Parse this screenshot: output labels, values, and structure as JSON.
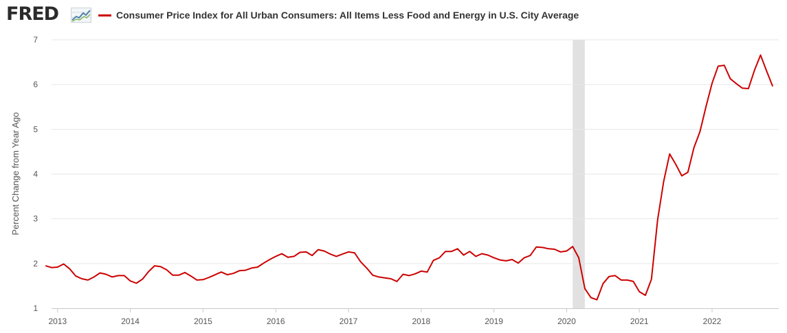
{
  "header": {
    "logo_text": "FRED",
    "logo_icon": "line-chart-icon"
  },
  "chart_data": {
    "type": "line",
    "title": "",
    "xlabel": "",
    "ylabel": "Percent Change from Year Ago",
    "series": [
      {
        "name": "Consumer Price Index for All Urban Consumers: All Items Less Food and Energy in U.S. City Average",
        "color": "#cc0000",
        "x": [
          "2012-11",
          "2012-12",
          "2013-01",
          "2013-02",
          "2013-03",
          "2013-04",
          "2013-05",
          "2013-06",
          "2013-07",
          "2013-08",
          "2013-09",
          "2013-10",
          "2013-11",
          "2013-12",
          "2014-01",
          "2014-02",
          "2014-03",
          "2014-04",
          "2014-05",
          "2014-06",
          "2014-07",
          "2014-08",
          "2014-09",
          "2014-10",
          "2014-11",
          "2014-12",
          "2015-01",
          "2015-02",
          "2015-03",
          "2015-04",
          "2015-05",
          "2015-06",
          "2015-07",
          "2015-08",
          "2015-09",
          "2015-10",
          "2015-11",
          "2015-12",
          "2016-01",
          "2016-02",
          "2016-03",
          "2016-04",
          "2016-05",
          "2016-06",
          "2016-07",
          "2016-08",
          "2016-09",
          "2016-10",
          "2016-11",
          "2016-12",
          "2017-01",
          "2017-02",
          "2017-03",
          "2017-04",
          "2017-05",
          "2017-06",
          "2017-07",
          "2017-08",
          "2017-09",
          "2017-10",
          "2017-11",
          "2017-12",
          "2018-01",
          "2018-02",
          "2018-03",
          "2018-04",
          "2018-05",
          "2018-06",
          "2018-07",
          "2018-08",
          "2018-09",
          "2018-10",
          "2018-11",
          "2018-12",
          "2019-01",
          "2019-02",
          "2019-03",
          "2019-04",
          "2019-05",
          "2019-06",
          "2019-07",
          "2019-08",
          "2019-09",
          "2019-10",
          "2019-11",
          "2019-12",
          "2020-01",
          "2020-02",
          "2020-03",
          "2020-04",
          "2020-05",
          "2020-06",
          "2020-07",
          "2020-08",
          "2020-09",
          "2020-10",
          "2020-11",
          "2020-12",
          "2021-01",
          "2021-02",
          "2021-03",
          "2021-04",
          "2021-05",
          "2021-06",
          "2021-07",
          "2021-08",
          "2021-09",
          "2021-10",
          "2021-11",
          "2021-12",
          "2022-01",
          "2022-02",
          "2022-03",
          "2022-04",
          "2022-05",
          "2022-06",
          "2022-07",
          "2022-08",
          "2022-09",
          "2022-10",
          "2022-11"
        ],
        "values": [
          1.95,
          1.91,
          1.92,
          1.99,
          1.88,
          1.72,
          1.66,
          1.63,
          1.7,
          1.79,
          1.76,
          1.7,
          1.73,
          1.73,
          1.61,
          1.56,
          1.65,
          1.82,
          1.95,
          1.93,
          1.86,
          1.74,
          1.74,
          1.8,
          1.72,
          1.63,
          1.64,
          1.69,
          1.75,
          1.81,
          1.75,
          1.78,
          1.84,
          1.85,
          1.9,
          1.92,
          2.01,
          2.09,
          2.16,
          2.22,
          2.14,
          2.16,
          2.25,
          2.26,
          2.18,
          2.31,
          2.28,
          2.21,
          2.16,
          2.21,
          2.26,
          2.24,
          2.04,
          1.9,
          1.74,
          1.7,
          1.68,
          1.66,
          1.6,
          1.76,
          1.73,
          1.77,
          1.83,
          1.81,
          2.07,
          2.13,
          2.27,
          2.27,
          2.33,
          2.19,
          2.27,
          2.16,
          2.22,
          2.19,
          2.13,
          2.08,
          2.06,
          2.09,
          2.01,
          2.13,
          2.18,
          2.37,
          2.36,
          2.33,
          2.32,
          2.26,
          2.28,
          2.38,
          2.13,
          1.44,
          1.24,
          1.19,
          1.55,
          1.71,
          1.73,
          1.63,
          1.63,
          1.6,
          1.37,
          1.29,
          1.65,
          2.97,
          3.83,
          4.45,
          4.22,
          3.96,
          4.04,
          4.59,
          4.95,
          5.51,
          6.03,
          6.41,
          6.43,
          6.13,
          6.02,
          5.92,
          5.91,
          6.32,
          6.66,
          6.3,
          5.96
        ]
      }
    ],
    "ylim": [
      1,
      7
    ],
    "yticks": [
      "1",
      "2",
      "3",
      "4",
      "5",
      "6",
      "7"
    ],
    "xticks": [
      "2013",
      "2014",
      "2015",
      "2016",
      "2017",
      "2018",
      "2019",
      "2020",
      "2021",
      "2022"
    ],
    "recession": {
      "start": "2020-02",
      "end": "2020-04",
      "color": "#e1e1e1"
    },
    "grid": "horizontal",
    "legend_position": "top"
  }
}
